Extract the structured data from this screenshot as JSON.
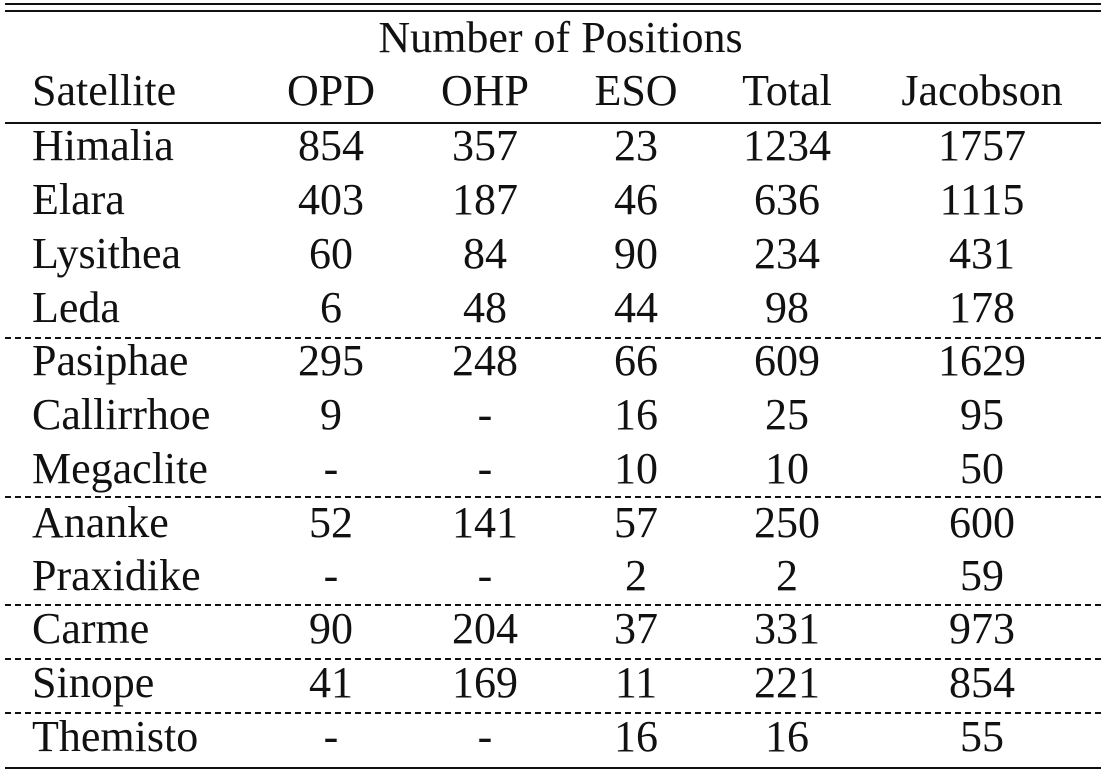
{
  "table": {
    "group_header": "Number of Positions",
    "columns": [
      "Satellite",
      "OPD",
      "OHP",
      "ESO",
      "Total",
      "Jacobson"
    ],
    "rows": [
      [
        "Himalia",
        "854",
        "357",
        "23",
        "1234",
        "1757"
      ],
      [
        "Elara",
        "403",
        "187",
        "46",
        "636",
        "1115"
      ],
      [
        "Lysithea",
        "60",
        "84",
        "90",
        "234",
        "431"
      ],
      [
        "Leda",
        "6",
        "48",
        "44",
        "98",
        "178"
      ],
      [
        "Pasiphae",
        "295",
        "248",
        "66",
        "609",
        "1629"
      ],
      [
        "Callirrhoe",
        "9",
        "-",
        "16",
        "25",
        "95"
      ],
      [
        "Megaclite",
        "-",
        "-",
        "10",
        "10",
        "50"
      ],
      [
        "Ananke",
        "52",
        "141",
        "57",
        "250",
        "600"
      ],
      [
        "Praxidike",
        "-",
        "-",
        "2",
        "2",
        "59"
      ],
      [
        "Carme",
        "90",
        "204",
        "37",
        "331",
        "973"
      ],
      [
        "Sinope",
        "41",
        "169",
        "11",
        "221",
        "854"
      ],
      [
        "Themisto",
        "-",
        "-",
        "16",
        "16",
        "55"
      ]
    ]
  }
}
